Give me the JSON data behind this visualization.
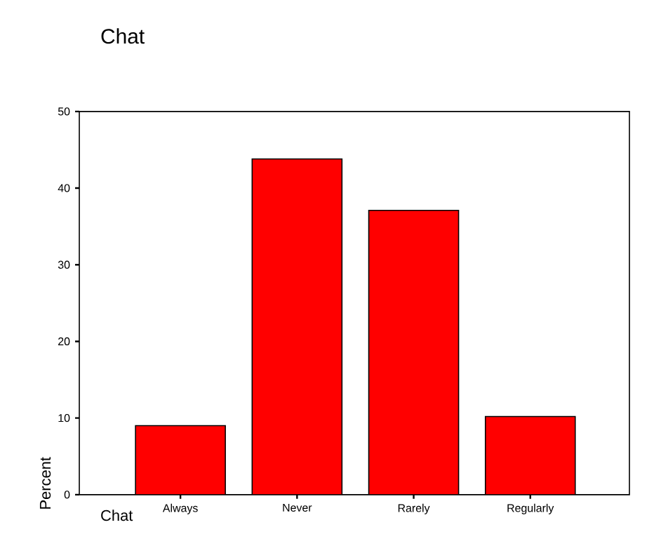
{
  "chart_data": {
    "type": "bar",
    "title": "Chat",
    "xlabel": "Chat",
    "ylabel": "Percent",
    "categories": [
      "Always",
      "Never",
      "Rarely",
      "Regularly"
    ],
    "values": [
      9.0,
      43.8,
      37.1,
      10.2
    ],
    "color": "#ff0000",
    "ylim": [
      0,
      50
    ],
    "yticks": [
      0,
      10,
      20,
      30,
      40,
      50
    ],
    "grid": false
  }
}
